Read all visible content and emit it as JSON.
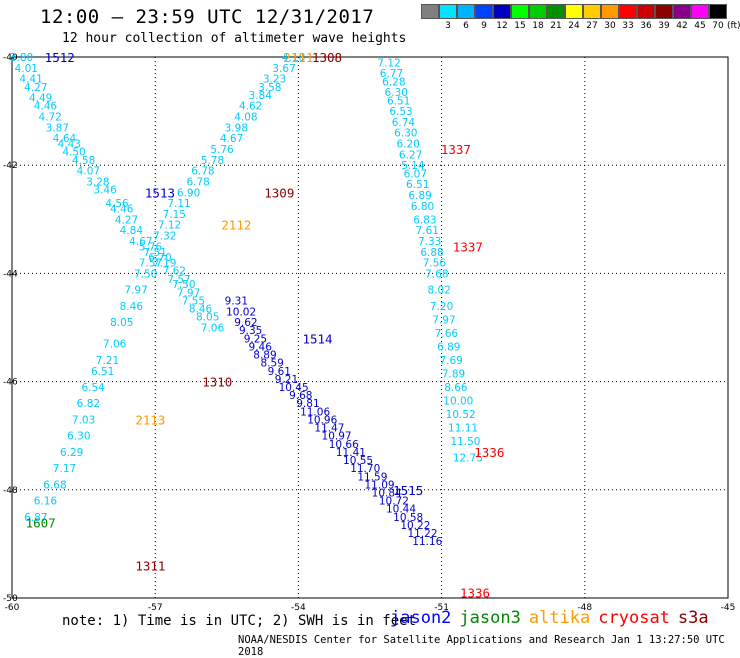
{
  "header": {
    "title": "12:00 — 23:59 UTC 12/31/2017",
    "subtitle": "12 hour collection of altimeter wave heights"
  },
  "colorbar": {
    "colors": [
      "#808080",
      "#00e5ff",
      "#00b3ff",
      "#0040ff",
      "#0000c0",
      "#00ff00",
      "#00cc00",
      "#009000",
      "#ffff00",
      "#ffcc00",
      "#ff9900",
      "#ff0000",
      "#cc0000",
      "#8b0000",
      "#8b008b",
      "#ff00ff",
      "#000000"
    ],
    "labels": [
      "",
      "3",
      "6",
      "9",
      "12",
      "15",
      "18",
      "21",
      "24",
      "27",
      "30",
      "33",
      "36",
      "39",
      "42",
      "45",
      "70"
    ],
    "unit": "(ft)"
  },
  "footer": {
    "note": "note:  1) Time is in UTC; 2) SWH is in feet",
    "credit": "NOAA/NESDIS Center for Satellite Applications and Research    Jan  1 13:27:50 UTC 2018"
  },
  "satellite_legend": [
    {
      "name": "jason2",
      "color": "#0000ff"
    },
    {
      "name": "jason3",
      "color": "#008800"
    },
    {
      "name": "altika",
      "color": "#ff9900"
    },
    {
      "name": "cryosat",
      "color": "#ff0000"
    },
    {
      "name": "s3a",
      "color": "#8b0000"
    }
  ],
  "chart_data": {
    "type": "scatter",
    "xlim": [
      -60,
      -45
    ],
    "ylim": [
      -50,
      -40
    ],
    "x_ticks": [
      -60,
      -57,
      -54,
      -51,
      -48,
      -45
    ],
    "x_tick_labels": [
      "-60",
      "-57",
      "-54",
      "-51",
      "-48",
      "-45"
    ],
    "y_ticks": [
      -40,
      -42,
      -44,
      -46,
      -48,
      -50
    ],
    "y_tick_labels": [
      "-40",
      "-42",
      "-44",
      "-46",
      "-48",
      "-50"
    ],
    "grid": true,
    "series": [
      {
        "name": "1512",
        "color": "#00ccff",
        "x": [
          -59.8,
          -59.7,
          -59.6,
          -59.5,
          -59.4,
          -59.3,
          -59.2,
          -59.05,
          -58.9,
          -58.8,
          -58.7,
          -58.5,
          -58.4,
          -58.2,
          -58.05,
          -57.8,
          -57.7,
          -57.6,
          -57.5,
          -57.3,
          -57.1,
          -56.9,
          -56.8,
          -56.6,
          -56.5,
          -56.4,
          -56.3,
          -56.2,
          -56.05,
          -55.9,
          -55.8
        ],
        "y": [
          -40.0,
          -40.2,
          -40.4,
          -40.55,
          -40.75,
          -40.9,
          -41.1,
          -41.3,
          -41.5,
          -41.6,
          -41.75,
          -41.9,
          -42.1,
          -42.3,
          -42.45,
          -42.7,
          -42.8,
          -43.0,
          -43.2,
          -43.4,
          -43.5,
          -43.7,
          -43.8,
          -43.95,
          -44.1,
          -44.2,
          -44.35,
          -44.5,
          -44.65,
          -44.8,
          -45.0
        ],
        "values": [
          "3.80",
          "4.01",
          "4.41",
          "4.27",
          "4.49",
          "4.46",
          "4.72",
          "3.87",
          "4.64",
          "4.43",
          "4.50",
          "4.58",
          "4.07",
          "3.28",
          "3.46",
          "4.56",
          "4.46",
          "4.27",
          "4.84",
          "4.67",
          "5.76",
          "6.70",
          "7.19",
          "7.62",
          "7.57",
          "7.50",
          "7.97",
          "7.55",
          "8.46",
          "8.05",
          "7.06"
        ]
      },
      {
        "name": "1513",
        "color": "#00ccff",
        "x": [
          -54.1,
          -54.3,
          -54.5,
          -54.6,
          -54.8,
          -55.0,
          -55.1,
          -55.3,
          -55.4,
          -55.6,
          -55.8,
          -56.0,
          -56.1,
          -56.3,
          -56.5,
          -56.6,
          -56.7,
          -56.8,
          -57.0,
          -57.1,
          -57.2,
          -57.4,
          -57.5,
          -57.7,
          -57.85,
          -58.0,
          -58.1,
          -58.3,
          -58.4,
          -58.5,
          -58.6,
          -58.75,
          -58.9,
          -59.1,
          -59.3,
          -59.5
        ],
        "y": [
          -40.0,
          -40.2,
          -40.4,
          -40.55,
          -40.7,
          -40.9,
          -41.1,
          -41.3,
          -41.5,
          -41.7,
          -41.9,
          -42.1,
          -42.3,
          -42.5,
          -42.7,
          -42.9,
          -43.1,
          -43.3,
          -43.6,
          -43.8,
          -44.0,
          -44.3,
          -44.6,
          -44.9,
          -45.3,
          -45.6,
          -45.8,
          -46.1,
          -46.4,
          -46.7,
          -47.0,
          -47.3,
          -47.6,
          -47.9,
          -48.2,
          -48.5
        ],
        "values": [
          "4.18",
          "3.67",
          "3.23",
          "3.58",
          "3.84",
          "4.62",
          "4.08",
          "3.98",
          "4.67",
          "5.76",
          "5.78",
          "6.78",
          "6.78",
          "6.90",
          "7.11",
          "7.15",
          "7.12",
          "7.32",
          "7.51",
          "7.57",
          "7.50",
          "7.97",
          "8.46",
          "8.05",
          "7.06",
          "7.21",
          "6.51",
          "6.54",
          "6.82",
          "7.03",
          "6.30",
          "6.29",
          "7.17",
          "6.68",
          "6.16",
          "6.87"
        ]
      },
      {
        "name": "1514",
        "color": "#0000cc",
        "x": [
          -55.3,
          -55.2,
          -55.1,
          -55.0,
          -54.9,
          -54.8,
          -54.7,
          -54.55,
          -54.4,
          -54.25,
          -54.1,
          -53.95,
          -53.8,
          -53.65,
          -53.5,
          -53.35,
          -53.2,
          -53.05,
          -52.9,
          -52.75,
          -52.6,
          -52.45,
          -52.3,
          -52.15,
          -52.0,
          -51.85,
          -51.7,
          -51.55,
          -51.4,
          -51.3
        ],
        "y": [
          -44.5,
          -44.7,
          -44.9,
          -45.05,
          -45.2,
          -45.35,
          -45.5,
          -45.65,
          -45.8,
          -45.95,
          -46.1,
          -46.25,
          -46.4,
          -46.55,
          -46.7,
          -46.85,
          -47.0,
          -47.15,
          -47.3,
          -47.45,
          -47.6,
          -47.75,
          -47.9,
          -48.05,
          -48.2,
          -48.35,
          -48.5,
          -48.65,
          -48.8,
          -48.95
        ],
        "values": [
          "9.31",
          "10.02",
          "9.62",
          "9.35",
          "9.25",
          "9.46",
          "8.89",
          "8.59",
          "9.61",
          "9.21",
          "10.45",
          "9.68",
          "9.81",
          "11.06",
          "10.96",
          "11.47",
          "10.97",
          "10.66",
          "11.41",
          "10.55",
          "11.70",
          "11.59",
          "11.09",
          "10.84",
          "10.72",
          "10.44",
          "10.58",
          "10.22",
          "11.22",
          "11.16"
        ]
      },
      {
        "name": "1336",
        "color": "#00ccff",
        "x": [
          -52.1,
          -52.05,
          -52.0,
          -51.95,
          -51.9,
          -51.85,
          -51.8,
          -51.75,
          -51.7,
          -51.65,
          -51.6,
          -51.55,
          -51.5,
          -51.45,
          -51.4,
          -51.35,
          -51.3,
          -51.25,
          -51.2,
          -51.15,
          -51.1,
          -51.05,
          -51.0,
          -50.95,
          -50.9,
          -50.85,
          -50.8,
          -50.75,
          -50.7,
          -50.65,
          -50.6,
          -50.55,
          -50.5,
          -50.45
        ],
        "y": [
          -40.1,
          -40.3,
          -40.45,
          -40.65,
          -40.8,
          -41.0,
          -41.2,
          -41.4,
          -41.6,
          -41.8,
          -42.0,
          -42.15,
          -42.35,
          -42.55,
          -42.75,
          -43.0,
          -43.2,
          -43.4,
          -43.6,
          -43.8,
          -44.0,
          -44.3,
          -44.6,
          -44.85,
          -45.1,
          -45.35,
          -45.6,
          -45.85,
          -46.1,
          -46.35,
          -46.6,
          -46.85,
          -47.1,
          -47.4
        ],
        "values": [
          "7.12",
          "6.77",
          "6.28",
          "6.30",
          "6.51",
          "6.53",
          "6.74",
          "6.30",
          "6.20",
          "6.27",
          "5.14",
          "6.07",
          "6.51",
          "6.89",
          "6.80",
          "6.83",
          "7.61",
          "7.33",
          "6.88",
          "7.56",
          "7.68",
          "8.02",
          "7.20",
          "7.97",
          "7.66",
          "6.89",
          "7.69",
          "7.89",
          "8.66",
          "10.00",
          "10.52",
          "11.11",
          "11.50",
          "12.75"
        ]
      }
    ],
    "track_labels": [
      {
        "text": "1512",
        "x": -59.0,
        "y": -40.0,
        "color": "#0000cc"
      },
      {
        "text": "2111",
        "x": -54.0,
        "y": -40.0,
        "color": "#ff9900"
      },
      {
        "text": "1308",
        "x": -53.4,
        "y": -40.0,
        "color": "#8b0000"
      },
      {
        "text": "1337",
        "x": -50.7,
        "y": -41.7,
        "color": "#ff0000"
      },
      {
        "text": "1513",
        "x": -56.9,
        "y": -42.5,
        "color": "#0000cc"
      },
      {
        "text": "1309",
        "x": -54.4,
        "y": -42.5,
        "color": "#8b0000"
      },
      {
        "text": "2112",
        "x": -55.3,
        "y": -43.1,
        "color": "#ff9900"
      },
      {
        "text": "1337",
        "x": -50.45,
        "y": -43.5,
        "color": "#ff0000"
      },
      {
        "text": "1514",
        "x": -53.6,
        "y": -45.2,
        "color": "#0000cc"
      },
      {
        "text": "1310",
        "x": -55.7,
        "y": -46.0,
        "color": "#8b0000"
      },
      {
        "text": "2113",
        "x": -57.1,
        "y": -46.7,
        "color": "#ff9900"
      },
      {
        "text": "1336",
        "x": -50.0,
        "y": -47.3,
        "color": "#ff0000"
      },
      {
        "text": "1515",
        "x": -51.7,
        "y": -48.0,
        "color": "#0000cc"
      },
      {
        "text": "1607",
        "x": -59.4,
        "y": -48.6,
        "color": "#008800"
      },
      {
        "text": "1311",
        "x": -57.1,
        "y": -49.4,
        "color": "#8b0000"
      },
      {
        "text": "1336",
        "x": -50.3,
        "y": -49.9,
        "color": "#ff0000"
      }
    ]
  }
}
